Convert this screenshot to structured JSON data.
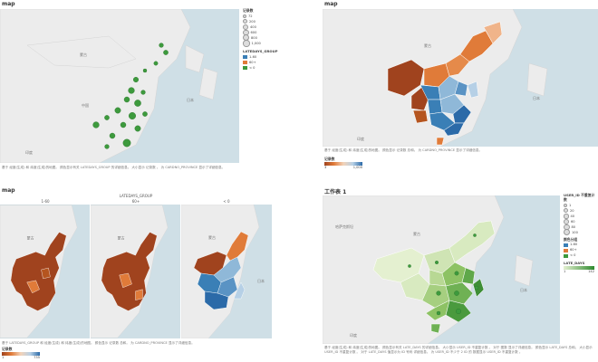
{
  "panels": {
    "p1": {
      "title": "map",
      "caption": "基于 经度(生成) 和 纬度(生成)的地图。 颜色显示有关 LATEDAYS_GROUP 的详细信息。 大小显示 记录数 。 为 CARDNO_PROVINCE 显示了详细信息。",
      "labels": {
        "mongolia": "蒙古",
        "china": "中国",
        "japan": "日本",
        "india": "印度"
      },
      "size_legend": {
        "title": "记录数",
        "items": [
          "72",
          "200",
          "400",
          "600",
          "800",
          "1,000"
        ]
      },
      "color_legend": {
        "title": "LATEDAYS_GROUP",
        "items": [
          {
            "label": "1-60",
            "color": "#3a7fb6"
          },
          {
            "label": "60+",
            "color": "#e07b39"
          },
          {
            "label": "< 0",
            "color": "#3d9a3d"
          }
        ]
      }
    },
    "p2": {
      "title": "map",
      "caption": "基于 经度(生成) 和 纬度(生成)的地图。 颜色显示 记录数 总和。 为 CARDNO_PROVINCE 显示了详细信息。",
      "labels": {
        "mongolia": "蒙古",
        "japan": "日本",
        "india": "印度"
      },
      "gradient_legend": {
        "title": "记录数",
        "min": "3",
        "max": "1,000",
        "from": "#a0431e",
        "to": "#2b6aa8"
      }
    },
    "p3": {
      "title": "map",
      "facet_header": "LATEDAYS_GROUP",
      "facets": [
        "1-60",
        "60+",
        "< 0"
      ],
      "labels": {
        "mongolia": "蒙古",
        "japan": "日本"
      },
      "caption": "基于 LATEDAYS_GROUP 和 经度(生成) 和 纬度(生成)的地图。 颜色显示 记录数 总和。 为 CARDNO_PROVINCE 显示了详细信息。",
      "gradient_legend": {
        "title": "记录数",
        "min": "1",
        "max": "735",
        "from": "#a0431e",
        "to": "#2b6aa8"
      }
    },
    "p4": {
      "title": "工作表 1",
      "labels": {
        "kazakhstan": "哈萨克斯坦",
        "mongolia": "蒙古",
        "japan": "日本",
        "india": "印度"
      },
      "caption": "基于 经度(生成) 和 纬度(生成)的地图。 颜色显示有关 LATE_DAYS 的详细信息。 大小显示 USER_ID 不重复计数 。 对于 图数 显示了详细信息。 颜色显示 LATE_DAYS 总和。 大小显示 USER_ID 不重复计数 。 对于 LATE_DAYS 值显示为 ID 号码 详细信息。 为 USER_ID 不少于 2 ID 的 数据显示 USER_ID 不重复计数 。",
      "size_legend": {
        "title": "USER_ID 不重复计数",
        "items": [
          "1",
          "20",
          "40",
          "60",
          "80",
          "100"
        ]
      },
      "color_legend": {
        "title": "颜色分组",
        "items": [
          {
            "label": "1-60",
            "color": "#3a7fb6"
          },
          {
            "label": "60+",
            "color": "#e07b39"
          },
          {
            "label": "< 0",
            "color": "#3d9a3d"
          }
        ]
      },
      "gradient_legend": {
        "title": "LATE_DAYS",
        "min": "1",
        "max": "142",
        "from": "#e4f0d0",
        "to": "#2f8a2f"
      }
    }
  }
}
